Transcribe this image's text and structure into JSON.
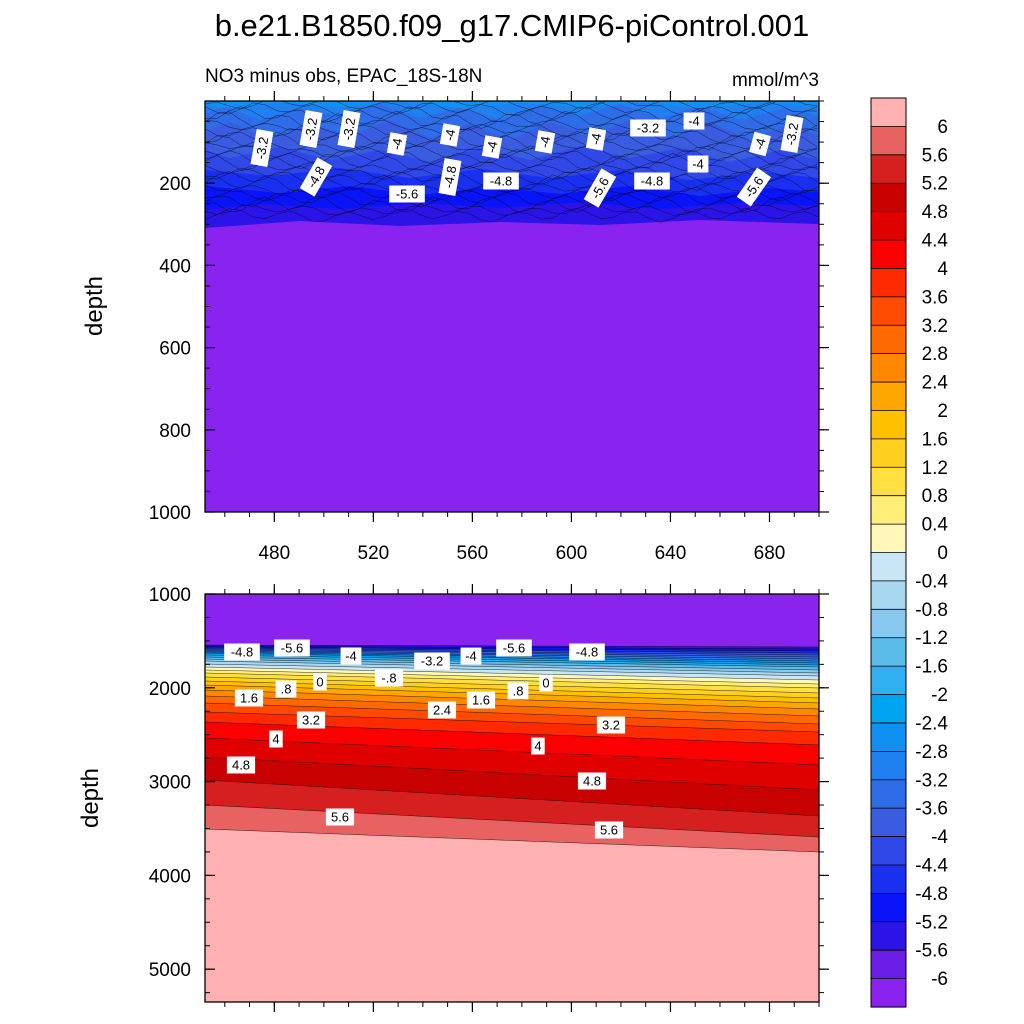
{
  "chart_data": {
    "type": "heatmap",
    "title": "b.e21.B1850.f09_g17.CMIP6-piControl.001",
    "units": "mmol/m^3",
    "colorbar": {
      "levels": [
        "6",
        "5.6",
        "5.2",
        "4.8",
        "4.4",
        "4",
        "3.6",
        "3.2",
        "2.8",
        "2.4",
        "2",
        "1.6",
        "1.2",
        "0.8",
        "0.4",
        "0",
        "-0.4",
        "-0.8",
        "-1.2",
        "-1.6",
        "-2",
        "-2.4",
        "-2.8",
        "-3.2",
        "-3.6",
        "-4",
        "-4.4",
        "-4.8",
        "-5.2",
        "-5.6",
        "-6"
      ],
      "colors": [
        "#ffb0b0",
        "#e86262",
        "#d62020",
        "#c80000",
        "#e00000",
        "#fa0000",
        "#ff2a00",
        "#ff4a00",
        "#ff6a00",
        "#ff8800",
        "#ffa600",
        "#ffc000",
        "#ffd020",
        "#ffe040",
        "#ffee77",
        "#fff8b8",
        "#c8e6f4",
        "#a8d8f0",
        "#88c8ee",
        "#5cbce8",
        "#30b0f0",
        "#00a4f0",
        "#1090f0",
        "#2080f0",
        "#2f6ce8",
        "#3a5ce0",
        "#3048e8",
        "#1a30f0",
        "#0a14f8",
        "#2a14e8",
        "#6a1ee8",
        "#8a22f0"
      ]
    },
    "panels": [
      {
        "subtitle": "NO3 minus obs, EPAC_18S-18N",
        "units": "mmol/m^3",
        "ylabel": "depth",
        "ylim": [
          0,
          1000
        ],
        "yticks": [
          "200",
          "400",
          "600",
          "800",
          "1000"
        ],
        "xlim": [
          452,
          700
        ],
        "xticks": [
          "480",
          "520",
          "560",
          "600",
          "640",
          "680"
        ],
        "contour_labels": [
          "-3.2",
          "-3.2",
          "-3.2",
          "-4",
          "-4",
          "-4",
          "-4",
          "-4",
          "-3.2",
          "-4",
          "-3.2",
          "-4",
          "-4.8",
          "-4.8",
          "-5.6",
          "-4.8",
          "-4",
          "-4.8",
          "-5.6",
          "-5.6"
        ]
      },
      {
        "ylabel": "depth",
        "ylim": [
          1000,
          5350
        ],
        "yticks": [
          "1000",
          "2000",
          "3000",
          "4000",
          "5000"
        ],
        "contour_labels": [
          "-4.8",
          "-5.6",
          "-4",
          "-3.2",
          "-4",
          "-5.6",
          "-4.8",
          "-.8",
          "0",
          ".8",
          "1.6",
          "2.4",
          "1.6",
          ".8",
          "0",
          "3.2",
          "3.2",
          "4",
          "4",
          "4.8",
          "4.8",
          "5.6",
          "5.6"
        ]
      }
    ]
  }
}
